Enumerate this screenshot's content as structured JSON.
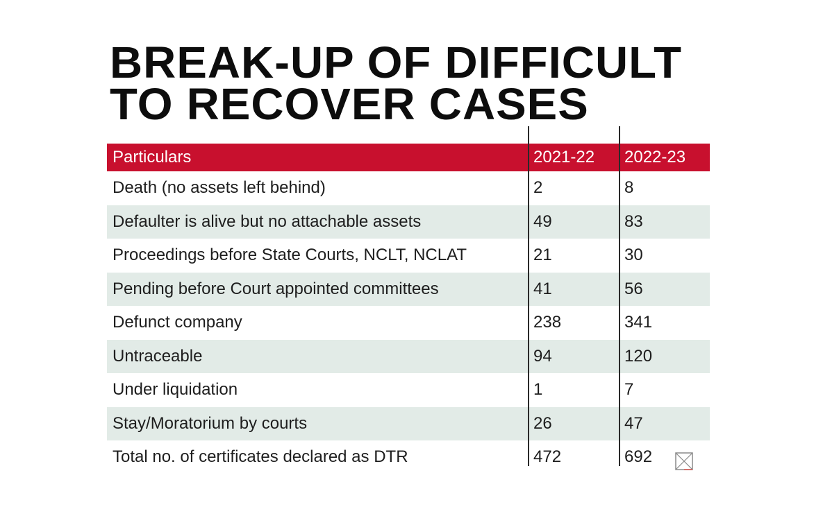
{
  "title": {
    "line1": "BREAK-UP OF DIFFICULT",
    "line2": "TO RECOVER CASES"
  },
  "colors": {
    "header_bg": "#c8102e",
    "header_text": "#ffffff",
    "row_shade": "#e2ebe7"
  },
  "chart_data": {
    "type": "table",
    "title": "BREAK-UP OF DIFFICULT TO RECOVER CASES",
    "columns": [
      "Particulars",
      "2021-22",
      "2022-23"
    ],
    "rows": [
      [
        "Death (no assets left behind)",
        "2",
        "8"
      ],
      [
        "Defaulter is alive but no attachable assets",
        "49",
        "83"
      ],
      [
        "Proceedings before State Courts, NCLT, NCLAT",
        "21",
        "30"
      ],
      [
        "Pending before Court appointed committees",
        "41",
        "56"
      ],
      [
        "Defunct company",
        "238",
        "341"
      ],
      [
        "Untraceable",
        "94",
        "120"
      ],
      [
        "Under liquidation",
        "1",
        "7"
      ],
      [
        "Stay/Moratorium by courts",
        "26",
        "47"
      ],
      [
        "Total no. of certificates declared as DTR",
        "472",
        "692"
      ]
    ]
  }
}
